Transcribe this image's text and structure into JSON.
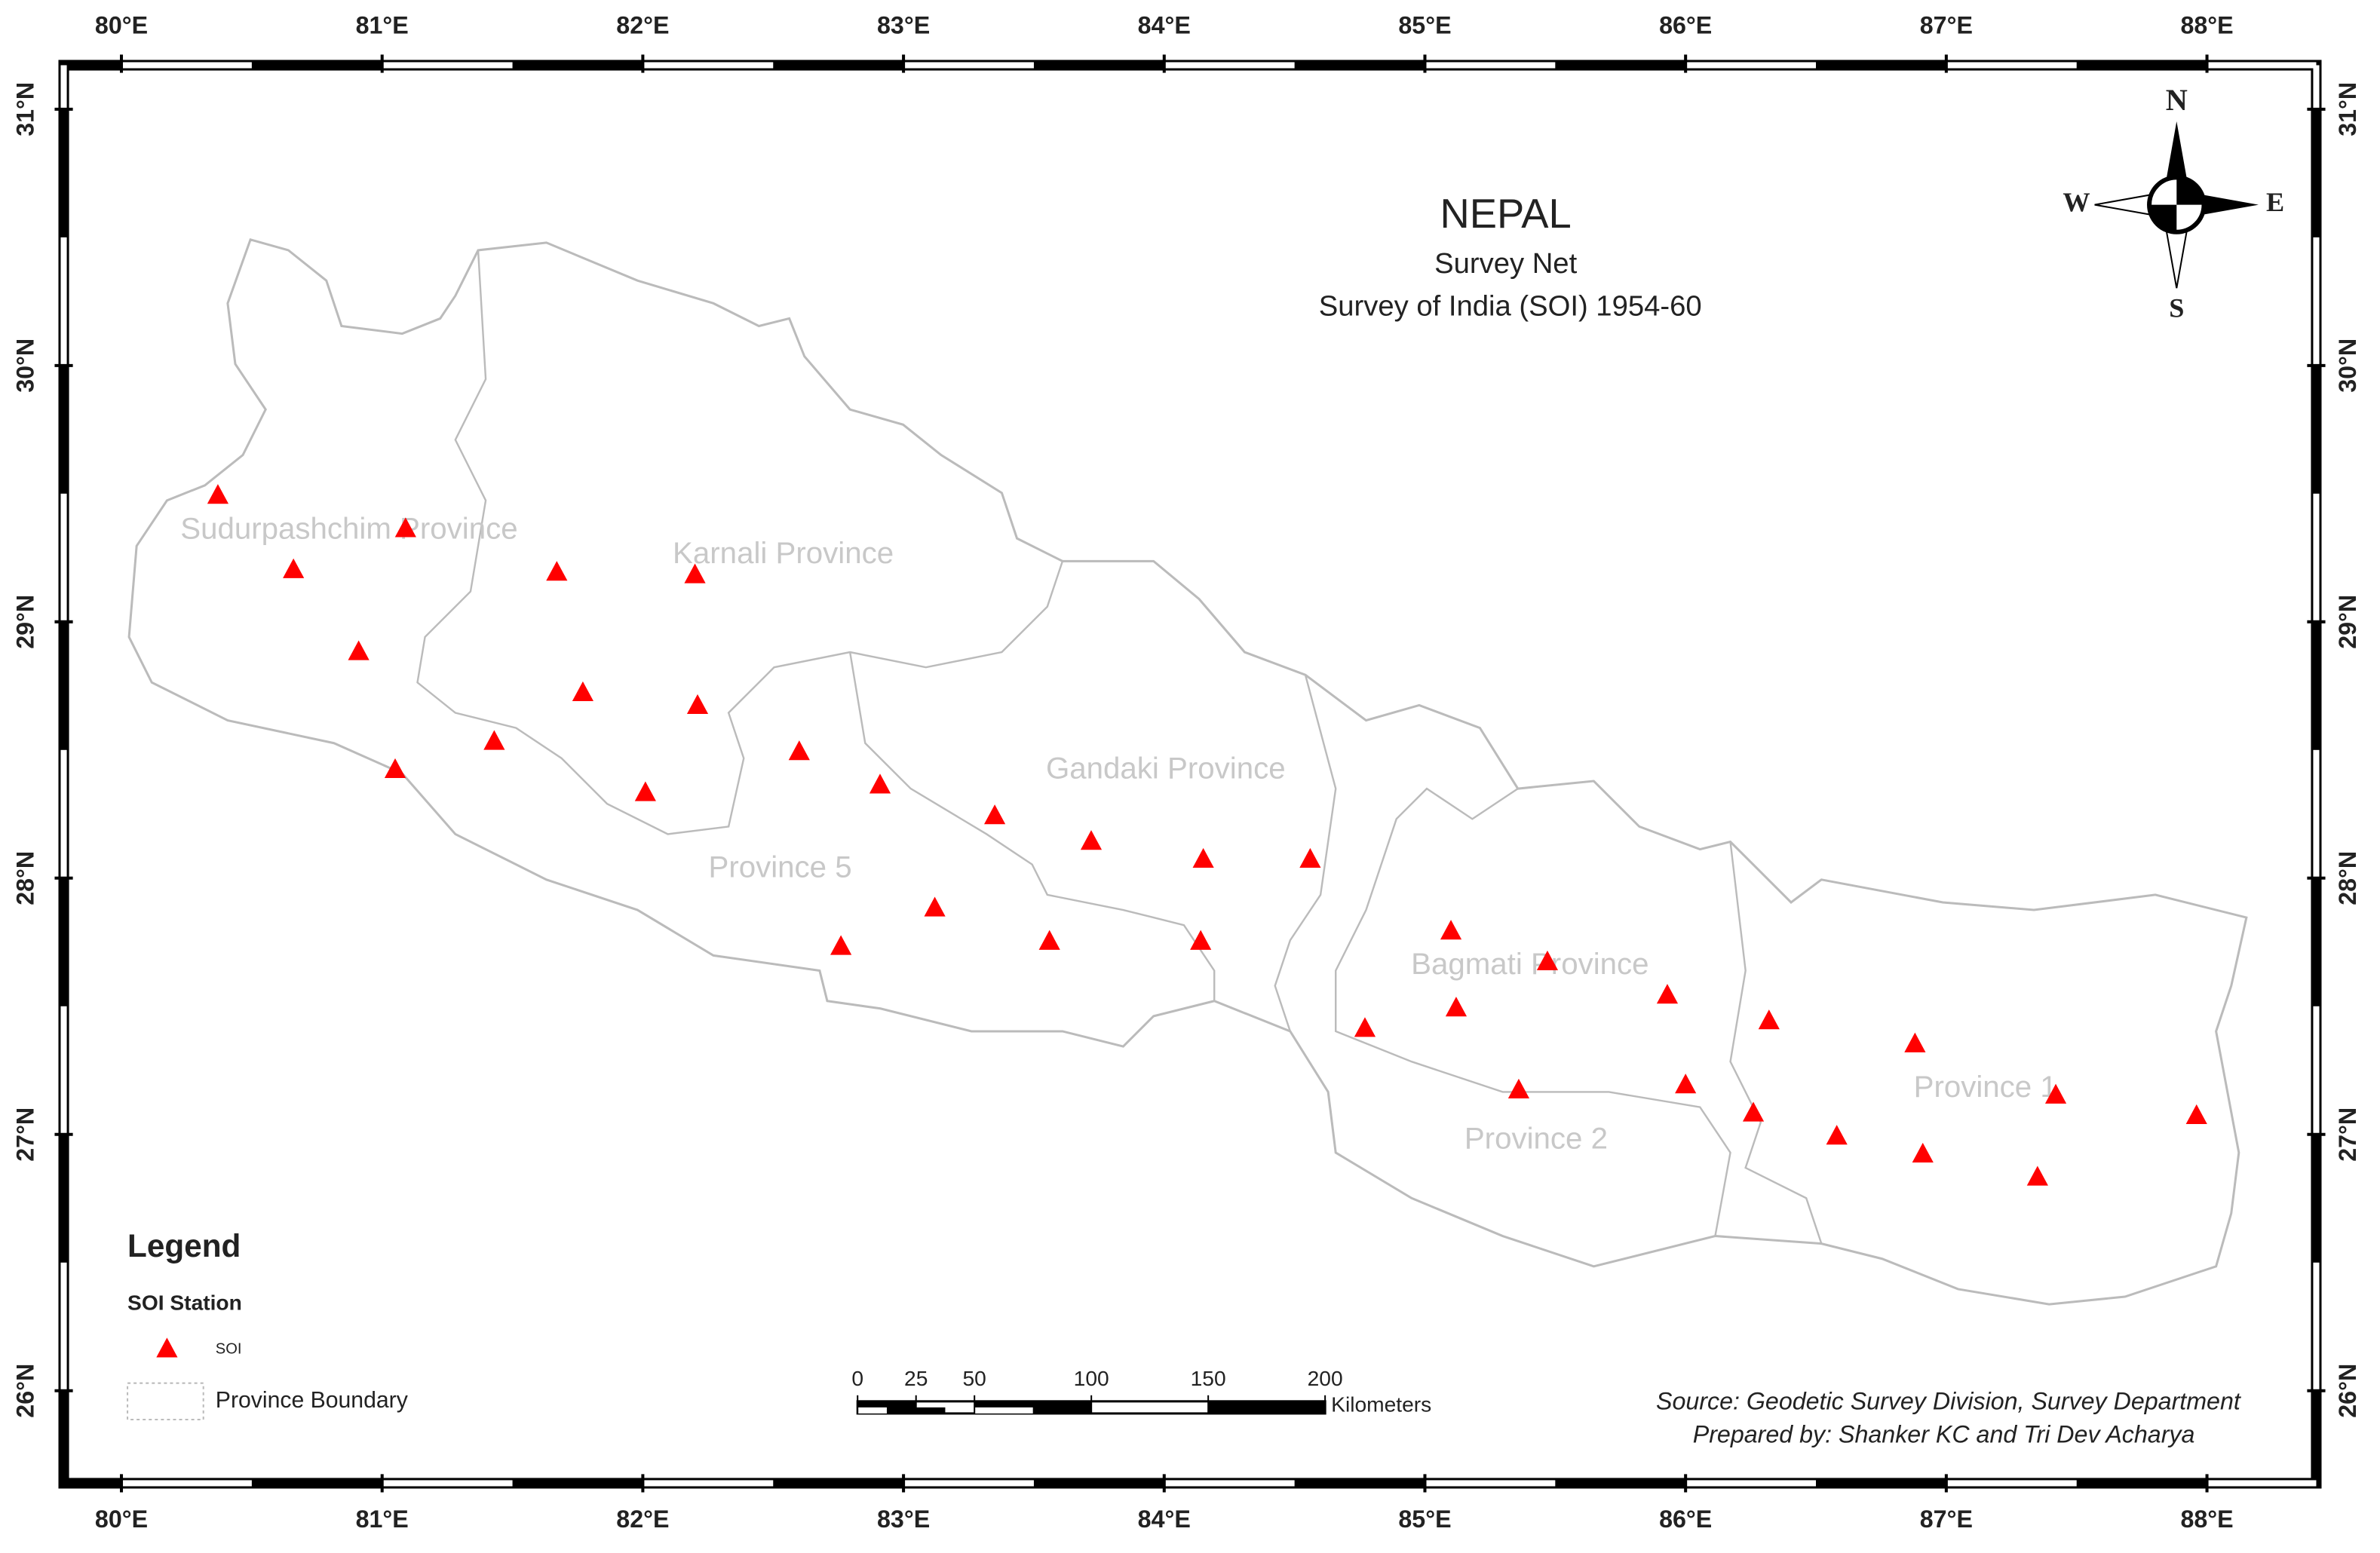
{
  "map": {
    "title": "NEPAL",
    "subtitle": "Survey Net",
    "subtitle2": "Survey of India (SOI) 1954-60",
    "lon_ticks": [
      {
        "value": 80,
        "label": "80°E"
      },
      {
        "value": 81,
        "label": "81°E"
      },
      {
        "value": 82,
        "label": "82°E"
      },
      {
        "value": 83,
        "label": "83°E"
      },
      {
        "value": 84,
        "label": "84°E"
      },
      {
        "value": 85,
        "label": "85°E"
      },
      {
        "value": 86,
        "label": "86°E"
      },
      {
        "value": 87,
        "label": "87°E"
      },
      {
        "value": 88,
        "label": "88°E"
      }
    ],
    "lat_ticks": [
      {
        "value": 26,
        "label": "26°N"
      },
      {
        "value": 27,
        "label": "27°N"
      },
      {
        "value": 28,
        "label": "28°N"
      },
      {
        "value": 29,
        "label": "29°N"
      },
      {
        "value": 30,
        "label": "30°N"
      },
      {
        "value": 31,
        "label": "31°N"
      }
    ],
    "provinces": [
      "Sudurpashchim Province",
      "Karnali Province",
      "Gandaki Province",
      "Province 5",
      "Bagmati Province",
      "Province 2",
      "Province 1"
    ],
    "stations": {
      "color": "#ff0000",
      "lon": [
        80.37,
        81.09,
        80.66,
        81.67,
        82.2,
        80.91,
        81.77,
        82.21,
        81.43,
        81.05,
        82.01,
        82.6,
        82.91,
        83.35,
        83.72,
        84.15,
        84.56,
        83.12,
        82.76,
        83.56,
        84.14,
        85.1,
        85.47,
        85.12,
        85.93,
        84.77,
        86.32,
        86.88,
        85.36,
        86.0,
        86.26,
        86.58,
        86.91,
        87.42,
        87.96,
        87.35
      ],
      "lat": [
        29.49,
        29.36,
        29.2,
        29.19,
        29.18,
        28.88,
        28.72,
        28.67,
        28.53,
        28.42,
        28.33,
        28.49,
        28.36,
        28.24,
        28.14,
        28.07,
        28.07,
        27.88,
        27.73,
        27.75,
        27.75,
        27.79,
        27.67,
        27.49,
        27.54,
        27.41,
        27.44,
        27.35,
        27.17,
        27.19,
        27.08,
        26.99,
        26.92,
        27.15,
        27.07,
        26.83
      ]
    },
    "compass": {
      "north": "N",
      "south": "S",
      "west": "W",
      "east": "E"
    },
    "legend": {
      "title": "Legend",
      "group": "SOI Station",
      "station": "SOI",
      "boundary": "Province Boundary"
    },
    "scale_bar": {
      "ticks": [
        0,
        25,
        50,
        100,
        150,
        200
      ],
      "unit": "Kilometers"
    },
    "source": "Source: Geodetic Survey Division, Survey Department",
    "prepared": "Prepared by: Shanker KC and Tri Dev Acharya"
  }
}
